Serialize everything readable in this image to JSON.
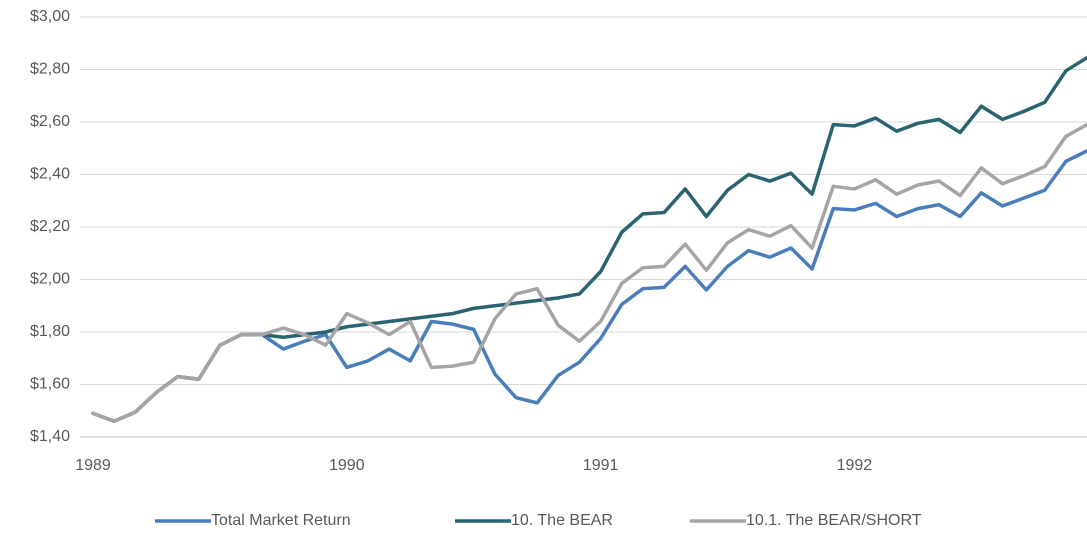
{
  "chart_data": {
    "type": "line",
    "categories": [
      "1989",
      null,
      null,
      null,
      null,
      null,
      null,
      null,
      null,
      null,
      null,
      null,
      "1990",
      null,
      null,
      null,
      null,
      null,
      null,
      null,
      null,
      null,
      null,
      null,
      "1991",
      null,
      null,
      null,
      null,
      null,
      null,
      null,
      null,
      null,
      null,
      null,
      "1992",
      null,
      null,
      null,
      null,
      null,
      null,
      null,
      null,
      null,
      null,
      null
    ],
    "series": [
      {
        "name": "Total Market Return",
        "color": "#4a7ebb",
        "values": [
          1.49,
          1.46,
          1.495,
          1.57,
          1.63,
          1.62,
          1.75,
          1.79,
          1.79,
          1.735,
          1.765,
          1.79,
          1.665,
          1.69,
          1.735,
          1.69,
          1.84,
          1.83,
          1.81,
          1.64,
          1.55,
          1.53,
          1.635,
          1.685,
          1.775,
          1.905,
          1.965,
          1.97,
          2.05,
          1.96,
          2.05,
          2.11,
          2.085,
          2.12,
          2.04,
          2.27,
          2.265,
          2.29,
          2.24,
          2.27,
          2.285,
          2.24,
          2.33,
          2.28,
          2.31,
          2.34,
          2.45,
          2.49
        ]
      },
      {
        "name": "10. The BEAR",
        "color": "#2a6470",
        "values": [
          1.49,
          1.46,
          1.495,
          1.57,
          1.63,
          1.62,
          1.75,
          1.79,
          1.79,
          1.78,
          1.79,
          1.8,
          1.82,
          1.83,
          1.84,
          1.85,
          1.86,
          1.87,
          1.89,
          1.9,
          1.91,
          1.92,
          1.93,
          1.945,
          2.03,
          2.18,
          2.25,
          2.255,
          2.345,
          2.24,
          2.34,
          2.4,
          2.375,
          2.405,
          2.325,
          2.59,
          2.585,
          2.615,
          2.565,
          2.595,
          2.61,
          2.56,
          2.66,
          2.61,
          2.64,
          2.675,
          2.795,
          2.845
        ]
      },
      {
        "name": "10.1. The BEAR/SHORT",
        "color": "#a5a5a5",
        "values": [
          1.49,
          1.46,
          1.495,
          1.57,
          1.63,
          1.62,
          1.75,
          1.79,
          1.79,
          1.815,
          1.79,
          1.75,
          1.87,
          1.835,
          1.79,
          1.84,
          1.665,
          1.67,
          1.685,
          1.85,
          1.945,
          1.965,
          1.825,
          1.765,
          1.84,
          1.985,
          2.045,
          2.05,
          2.135,
          2.035,
          2.14,
          2.19,
          2.165,
          2.205,
          2.12,
          2.355,
          2.345,
          2.38,
          2.325,
          2.36,
          2.375,
          2.32,
          2.425,
          2.365,
          2.395,
          2.43,
          2.545,
          2.59
        ]
      }
    ],
    "ylim": [
      1.4,
      3.0
    ],
    "yticks": [
      {
        "value": 1.4,
        "label": "$1,40"
      },
      {
        "value": 1.6,
        "label": "$1,60"
      },
      {
        "value": 1.8,
        "label": "$1,80"
      },
      {
        "value": 2.0,
        "label": "$2,00"
      },
      {
        "value": 2.2,
        "label": "$2,20"
      },
      {
        "value": 2.4,
        "label": "$2,40"
      },
      {
        "value": 2.6,
        "label": "$2,60"
      },
      {
        "value": 2.8,
        "label": "$2,80"
      },
      {
        "value": 3.0,
        "label": "$3,00"
      }
    ],
    "grid": true,
    "legend": "bottom"
  }
}
